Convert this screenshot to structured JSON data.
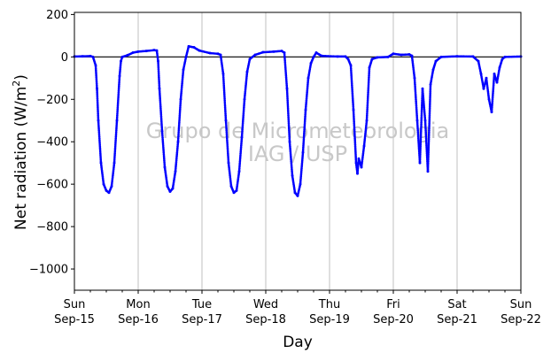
{
  "watermark": {
    "line1": "Grupo de Micrometeorologia",
    "line2": "IAG / USP"
  },
  "colors": {
    "series": "#0000ff",
    "zero_line": "#000000",
    "grid": "#b0b0b0",
    "watermark": "#c8c8c8"
  },
  "chart_data": {
    "type": "scatter",
    "title": "",
    "xlabel": "Day",
    "ylabel_main": "Net radiation (W/m",
    "ylabel_sup": "2",
    "ylabel_close": ")",
    "xlim": [
      "2019-09-15",
      "2019-09-22"
    ],
    "ylim": [
      -1100,
      210
    ],
    "y_ticks": [
      200,
      0,
      -200,
      -400,
      -600,
      -800,
      -1000
    ],
    "y_tick_labels": [
      "200",
      "0",
      "−200",
      "−400",
      "−600",
      "−800",
      "−1000"
    ],
    "x_ticks": [
      {
        "date": "2019-09-15",
        "day": "Sun",
        "date_label": "Sep-15"
      },
      {
        "date": "2019-09-16",
        "day": "Mon",
        "date_label": "Sep-16"
      },
      {
        "date": "2019-09-17",
        "day": "Tue",
        "date_label": "Sep-17"
      },
      {
        "date": "2019-09-18",
        "day": "Wed",
        "date_label": "Sep-18"
      },
      {
        "date": "2019-09-19",
        "day": "Thu",
        "date_label": "Sep-19"
      },
      {
        "date": "2019-09-20",
        "day": "Fri",
        "date_label": "Sep-20"
      },
      {
        "date": "2019-09-21",
        "day": "Sat",
        "date_label": "Sep-21"
      },
      {
        "date": "2019-09-22",
        "day": "Sun",
        "date_label": "Sep-22"
      }
    ],
    "vertical_grid": true,
    "zero_line": true,
    "series": [
      {
        "marker": "dot",
        "points": [
          [
            "2019-09-15 00:00",
            2
          ],
          [
            "2019-09-15 03:00",
            3
          ],
          [
            "2019-09-15 06:00",
            4
          ],
          [
            "2019-09-15 07:00",
            0
          ],
          [
            "2019-09-15 08:00",
            -40
          ],
          [
            "2019-09-15 08:30",
            -150
          ],
          [
            "2019-09-15 09:00",
            -300
          ],
          [
            "2019-09-15 10:00",
            -500
          ],
          [
            "2019-09-15 11:00",
            -600
          ],
          [
            "2019-09-15 12:00",
            -630
          ],
          [
            "2019-09-15 13:00",
            -640
          ],
          [
            "2019-09-15 14:00",
            -610
          ],
          [
            "2019-09-15 15:00",
            -500
          ],
          [
            "2019-09-15 16:00",
            -300
          ],
          [
            "2019-09-15 17:00",
            -90
          ],
          [
            "2019-09-15 17:30",
            -20
          ],
          [
            "2019-09-15 18:00",
            0
          ],
          [
            "2019-09-15 20:00",
            8
          ],
          [
            "2019-09-15 22:00",
            20
          ],
          [
            "2019-09-16 00:00",
            25
          ],
          [
            "2019-09-16 03:00",
            28
          ],
          [
            "2019-09-16 06:00",
            32
          ],
          [
            "2019-09-16 07:00",
            30
          ],
          [
            "2019-09-16 07:30",
            -20
          ],
          [
            "2019-09-16 08:00",
            -150
          ],
          [
            "2019-09-16 09:00",
            -350
          ],
          [
            "2019-09-16 10:00",
            -520
          ],
          [
            "2019-09-16 11:00",
            -610
          ],
          [
            "2019-09-16 12:00",
            -635
          ],
          [
            "2019-09-16 13:00",
            -620
          ],
          [
            "2019-09-16 14:00",
            -540
          ],
          [
            "2019-09-16 15:00",
            -400
          ],
          [
            "2019-09-16 16:00",
            -200
          ],
          [
            "2019-09-16 17:00",
            -60
          ],
          [
            "2019-09-16 18:00",
            0
          ],
          [
            "2019-09-16 19:00",
            50
          ],
          [
            "2019-09-16 21:00",
            45
          ],
          [
            "2019-09-16 23:00",
            30
          ],
          [
            "2019-09-17 03:00",
            18
          ],
          [
            "2019-09-17 06:00",
            15
          ],
          [
            "2019-09-17 07:00",
            10
          ],
          [
            "2019-09-17 08:00",
            -80
          ],
          [
            "2019-09-17 09:00",
            -300
          ],
          [
            "2019-09-17 10:00",
            -500
          ],
          [
            "2019-09-17 11:00",
            -610
          ],
          [
            "2019-09-17 12:00",
            -640
          ],
          [
            "2019-09-17 13:00",
            -630
          ],
          [
            "2019-09-17 14:00",
            -540
          ],
          [
            "2019-09-17 15:00",
            -380
          ],
          [
            "2019-09-17 16:00",
            -200
          ],
          [
            "2019-09-17 17:00",
            -70
          ],
          [
            "2019-09-17 18:00",
            -10
          ],
          [
            "2019-09-17 20:00",
            10
          ],
          [
            "2019-09-17 23:00",
            22
          ],
          [
            "2019-09-18 03:00",
            25
          ],
          [
            "2019-09-18 06:00",
            28
          ],
          [
            "2019-09-18 07:00",
            20
          ],
          [
            "2019-09-18 08:00",
            -150
          ],
          [
            "2019-09-18 09:00",
            -400
          ],
          [
            "2019-09-18 10:00",
            -560
          ],
          [
            "2019-09-18 11:00",
            -640
          ],
          [
            "2019-09-18 12:00",
            -655
          ],
          [
            "2019-09-18 13:00",
            -600
          ],
          [
            "2019-09-18 14:00",
            -450
          ],
          [
            "2019-09-18 15:00",
            -250
          ],
          [
            "2019-09-18 16:00",
            -100
          ],
          [
            "2019-09-18 17:00",
            -30
          ],
          [
            "2019-09-18 18:00",
            0
          ],
          [
            "2019-09-18 19:00",
            20
          ],
          [
            "2019-09-18 21:00",
            5
          ],
          [
            "2019-09-19 03:00",
            2
          ],
          [
            "2019-09-19 06:00",
            2
          ],
          [
            "2019-09-19 07:00",
            -10
          ],
          [
            "2019-09-19 08:00",
            -40
          ],
          [
            "2019-09-19 09:00",
            -250
          ],
          [
            "2019-09-19 10:00",
            -500
          ],
          [
            "2019-09-19 10:30",
            -550
          ],
          [
            "2019-09-19 11:00",
            -480
          ],
          [
            "2019-09-19 12:00",
            -520
          ],
          [
            "2019-09-19 13:00",
            -420
          ],
          [
            "2019-09-19 14:00",
            -300
          ],
          [
            "2019-09-19 15:00",
            -50
          ],
          [
            "2019-09-19 16:00",
            -10
          ],
          [
            "2019-09-19 18:00",
            -2
          ],
          [
            "2019-09-19 22:00",
            0
          ],
          [
            "2019-09-20 00:00",
            15
          ],
          [
            "2019-09-20 03:00",
            10
          ],
          [
            "2019-09-20 06:00",
            12
          ],
          [
            "2019-09-20 07:00",
            5
          ],
          [
            "2019-09-20 08:00",
            -100
          ],
          [
            "2019-09-20 09:00",
            -300
          ],
          [
            "2019-09-20 10:00",
            -500
          ],
          [
            "2019-09-20 11:00",
            -150
          ],
          [
            "2019-09-20 12:00",
            -300
          ],
          [
            "2019-09-20 13:00",
            -540
          ],
          [
            "2019-09-20 14:00",
            -130
          ],
          [
            "2019-09-20 15:00",
            -60
          ],
          [
            "2019-09-20 16:00",
            -20
          ],
          [
            "2019-09-20 18:00",
            0
          ],
          [
            "2019-09-21 00:00",
            3
          ],
          [
            "2019-09-21 06:00",
            2
          ],
          [
            "2019-09-21 08:00",
            -20
          ],
          [
            "2019-09-21 09:00",
            -80
          ],
          [
            "2019-09-21 10:00",
            -150
          ],
          [
            "2019-09-21 11:00",
            -100
          ],
          [
            "2019-09-21 12:00",
            -200
          ],
          [
            "2019-09-21 13:00",
            -260
          ],
          [
            "2019-09-21 14:00",
            -80
          ],
          [
            "2019-09-21 15:00",
            -120
          ],
          [
            "2019-09-21 16:00",
            -50
          ],
          [
            "2019-09-21 17:00",
            -10
          ],
          [
            "2019-09-21 18:00",
            0
          ],
          [
            "2019-09-22 00:00",
            2
          ]
        ]
      }
    ]
  }
}
